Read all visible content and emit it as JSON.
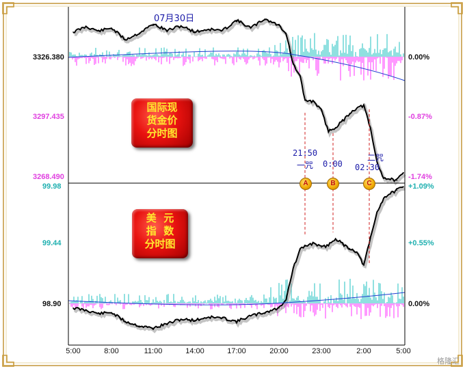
{
  "title": "07月30日",
  "gold_badge": [
    "国际现",
    "货金价",
    "分时图"
  ],
  "usd_badge": [
    "美  元",
    "指  数",
    "分时图"
  ],
  "markers": [
    {
      "letter": "A",
      "label_top": "21:50",
      "label_bottom": "一咒"
    },
    {
      "letter": "B",
      "label_top": "0:00",
      "label_bottom": ""
    },
    {
      "letter": "C",
      "label_top": "二咒",
      "label_bottom": "02:30"
    }
  ],
  "watermark": "格隆汇",
  "colors": {
    "gold_left": "#e040e0",
    "usd_left": "#20b0b0",
    "price_line": "#000000",
    "avg_line": "#1f3fd0",
    "up_bar": "#20c0c0",
    "down_bar": "#ff33ff"
  },
  "chart_data": [
    {
      "type": "line",
      "name_text": "国际现货金价分时图",
      "yticks": [
        "3326.380",
        "3297.435",
        "3268.490"
      ],
      "yticks_right": [
        "0.00%",
        "-0.87%",
        "-1.74%"
      ],
      "ylim": [
        3268.49,
        3333
      ],
      "x": [
        "5:00",
        "6:00",
        "7:00",
        "8:00",
        "9:00",
        "10:00",
        "11:00",
        "12:00",
        "13:00",
        "14:00",
        "15:00",
        "16:00",
        "17:00",
        "18:00",
        "19:00",
        "20:00",
        "20:30",
        "21:00",
        "21:30",
        "21:50",
        "22:30",
        "23:00",
        "23:30",
        "0:00",
        "0:30",
        "1:00",
        "1:30",
        "2:00",
        "2:30",
        "3:00",
        "3:30",
        "4:00",
        "4:30",
        "5:00"
      ],
      "values": [
        3326.4,
        3328.5,
        3326.8,
        3328.0,
        3323.5,
        3326.0,
        3329.5,
        3327.0,
        3328.8,
        3326.5,
        3327.5,
        3327.0,
        3331.0,
        3328.0,
        3331.5,
        3329.0,
        3326.0,
        3314.0,
        3309.0,
        3300.0,
        3299.5,
        3296.0,
        3288.0,
        3289.5,
        3292.0,
        3295.0,
        3297.0,
        3298.0,
        3289.0,
        3276.0,
        3270.0,
        3269.5,
        3269.0,
        3272.0
      ]
    },
    {
      "type": "line",
      "name_text": "美元指数分时图",
      "yticks": [
        "99.98",
        "99.44",
        "98.90"
      ],
      "yticks_right": [
        "+1.09%",
        "+0.55%",
        "0.00%"
      ],
      "ylim": [
        98.6,
        100.0
      ],
      "x": [
        "5:00",
        "6:00",
        "7:00",
        "8:00",
        "9:00",
        "10:00",
        "11:00",
        "12:00",
        "13:00",
        "14:00",
        "15:00",
        "16:00",
        "17:00",
        "18:00",
        "19:00",
        "20:00",
        "20:30",
        "21:00",
        "21:30",
        "21:50",
        "22:30",
        "23:00",
        "23:30",
        "0:00",
        "0:30",
        "1:00",
        "1:30",
        "2:00",
        "2:30",
        "3:00",
        "3:30",
        "4:00",
        "4:30",
        "5:00"
      ],
      "values": [
        98.9,
        98.88,
        98.85,
        98.86,
        98.78,
        98.74,
        98.72,
        98.76,
        98.8,
        98.79,
        98.82,
        98.81,
        98.78,
        98.83,
        98.86,
        98.9,
        98.98,
        99.25,
        99.42,
        99.45,
        99.48,
        99.44,
        99.46,
        99.52,
        99.47,
        99.43,
        99.4,
        99.28,
        99.52,
        99.75,
        99.88,
        99.92,
        99.95,
        99.98
      ]
    }
  ],
  "xticks": [
    "5:00",
    "8:00",
    "11:00",
    "14:00",
    "17:00",
    "20:00",
    "23:00",
    "2:00",
    "5:00"
  ]
}
